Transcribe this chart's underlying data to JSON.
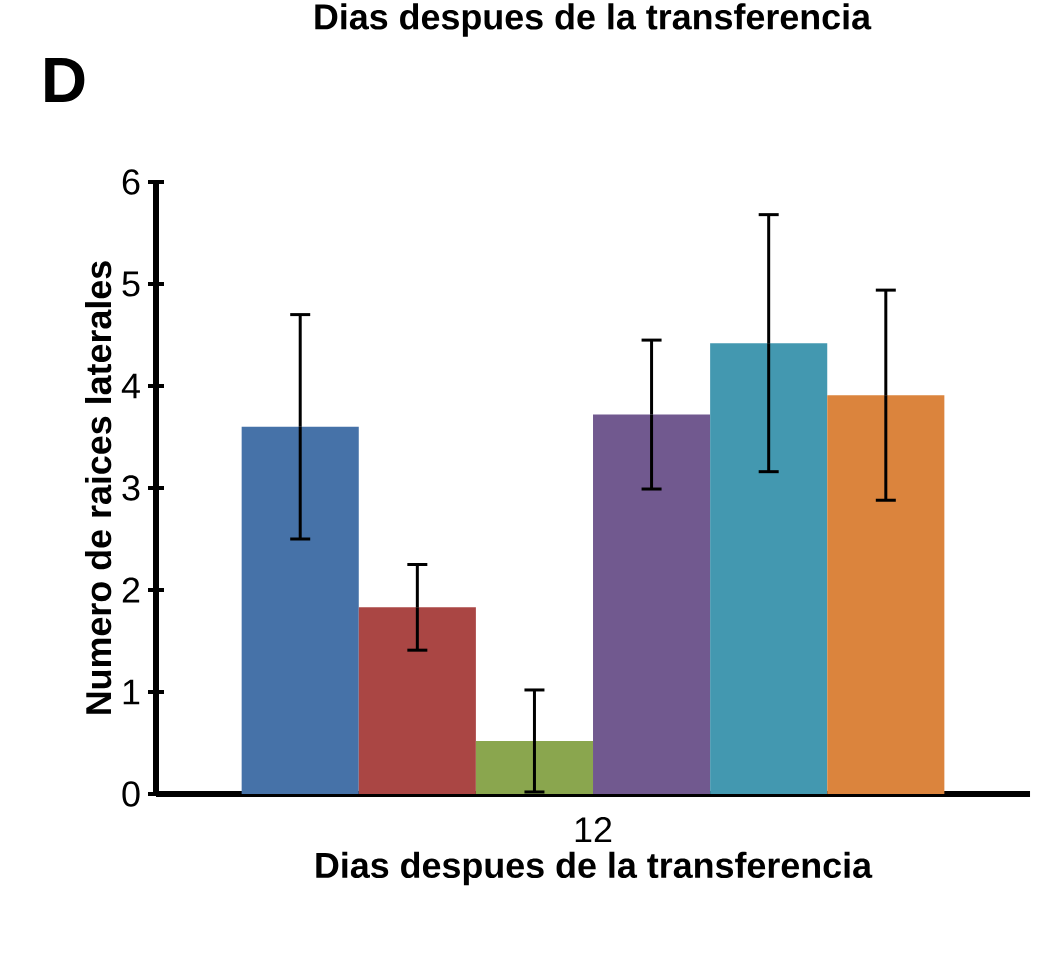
{
  "chart_data": {
    "type": "bar",
    "categories": [
      "12"
    ],
    "xlabel": "Dias despues de la transferencia",
    "ylabel": "Numero de raices laterales",
    "ylim": [
      0,
      6
    ],
    "yticks": [
      0,
      1,
      2,
      3,
      4,
      5,
      6
    ],
    "grid": false,
    "annotations": [
      "D",
      "Dias despues de la transferencia"
    ],
    "series": [
      {
        "color": "#4672a8",
        "values": [
          3.6
        ],
        "errors": [
          1.1
        ]
      },
      {
        "color": "#aa4644",
        "values": [
          1.83
        ],
        "errors": [
          0.42
        ]
      },
      {
        "color": "#8aa64e",
        "values": [
          0.52
        ],
        "errors": [
          0.5
        ]
      },
      {
        "color": "#71598f",
        "values": [
          3.72
        ],
        "errors": [
          0.73
        ]
      },
      {
        "color": "#4398b0",
        "values": [
          4.42
        ],
        "errors": [
          1.26
        ]
      },
      {
        "color": "#db843d",
        "values": [
          3.91
        ],
        "errors": [
          1.03
        ]
      }
    ]
  }
}
